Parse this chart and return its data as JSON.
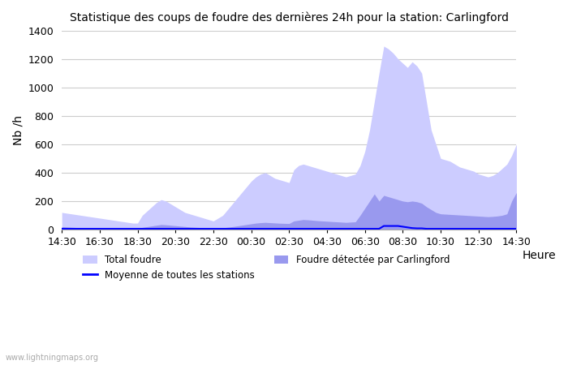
{
  "title": "Statistique des coups de foudre des dernières 24h pour la station: Carlingford",
  "xlabel": "Heure",
  "ylabel": "Nb /h",
  "ylim": [
    0,
    1400
  ],
  "yticks": [
    0,
    200,
    400,
    600,
    800,
    1000,
    1200,
    1400
  ],
  "x_labels": [
    "14:30",
    "16:30",
    "18:30",
    "20:30",
    "22:30",
    "00:30",
    "02:30",
    "04:30",
    "06:30",
    "08:30",
    "10:30",
    "12:30",
    "14:30"
  ],
  "bg_color": "#ffffff",
  "grid_color": "#cccccc",
  "total_foudre_color": "#ccccff",
  "carlingford_color": "#9999ee",
  "moyenne_color": "#0000ff",
  "watermark": "www.lightningmaps.org",
  "legend": {
    "total_foudre": "Total foudre",
    "moyenne": "Moyenne de toutes les stations",
    "carlingford": "Foudre détectée par Carlingford"
  },
  "total_foudre": [
    120,
    115,
    110,
    105,
    100,
    95,
    90,
    85,
    80,
    75,
    70,
    65,
    60,
    55,
    50,
    45,
    45,
    100,
    130,
    160,
    190,
    210,
    200,
    180,
    160,
    140,
    120,
    110,
    100,
    90,
    80,
    70,
    60,
    80,
    100,
    140,
    180,
    220,
    260,
    300,
    340,
    370,
    390,
    400,
    380,
    360,
    350,
    340,
    330,
    420,
    450,
    460,
    450,
    440,
    430,
    420,
    410,
    400,
    390,
    380,
    370,
    380,
    390,
    450,
    550,
    700,
    900,
    1100,
    1290,
    1270,
    1240,
    1200,
    1170,
    1140,
    1180,
    1150,
    1100,
    900,
    700,
    600,
    500,
    490,
    480,
    460,
    440,
    430,
    420,
    410,
    390,
    380,
    370,
    380,
    400,
    430,
    460,
    520,
    600
  ],
  "carlingford": [
    20,
    18,
    16,
    14,
    12,
    10,
    9,
    8,
    7,
    6,
    5,
    5,
    4,
    4,
    3,
    3,
    3,
    15,
    20,
    25,
    30,
    35,
    33,
    30,
    27,
    24,
    21,
    18,
    16,
    14,
    12,
    10,
    8,
    10,
    12,
    16,
    20,
    25,
    30,
    35,
    40,
    45,
    48,
    50,
    48,
    46,
    44,
    43,
    42,
    60,
    65,
    70,
    68,
    65,
    62,
    60,
    58,
    56,
    54,
    52,
    50,
    52,
    54,
    100,
    150,
    200,
    250,
    200,
    240,
    230,
    220,
    210,
    200,
    195,
    200,
    195,
    185,
    160,
    140,
    120,
    110,
    108,
    106,
    104,
    102,
    100,
    98,
    96,
    94,
    92,
    90,
    92,
    95,
    100,
    110,
    200,
    260
  ],
  "moyenne": [
    5,
    5,
    5,
    5,
    5,
    5,
    5,
    5,
    5,
    5,
    5,
    5,
    5,
    5,
    5,
    5,
    5,
    5,
    5,
    5,
    5,
    5,
    5,
    5,
    5,
    5,
    5,
    5,
    5,
    5,
    5,
    5,
    5,
    5,
    5,
    5,
    5,
    5,
    5,
    5,
    5,
    5,
    5,
    5,
    5,
    5,
    5,
    5,
    5,
    5,
    5,
    5,
    5,
    5,
    5,
    5,
    5,
    5,
    5,
    5,
    5,
    5,
    5,
    5,
    5,
    5,
    5,
    5,
    25,
    25,
    25,
    25,
    20,
    15,
    10,
    8,
    8,
    5,
    5,
    5,
    5,
    5,
    5,
    5,
    5,
    5,
    5,
    5,
    5,
    5,
    5,
    5,
    5,
    5,
    5,
    5,
    5
  ]
}
